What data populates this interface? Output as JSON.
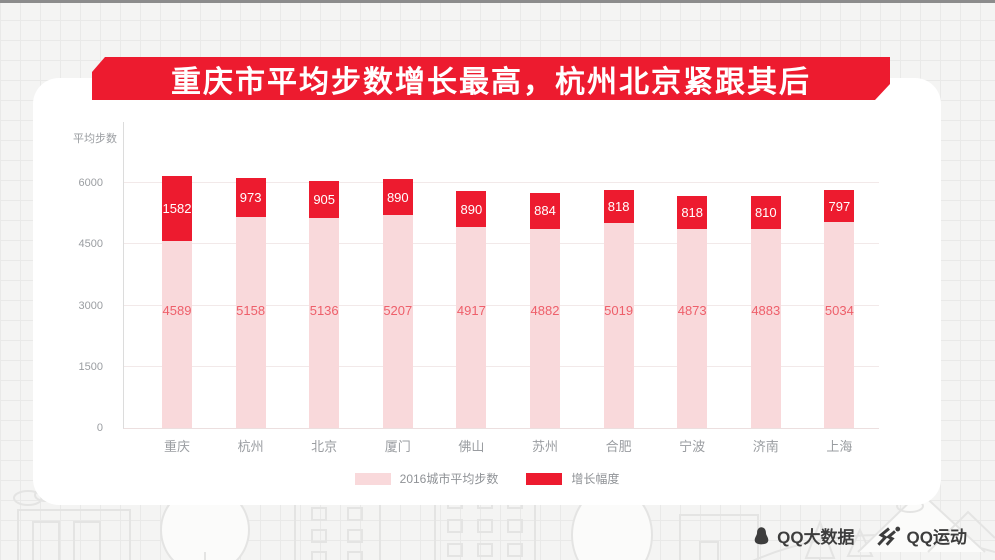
{
  "banner": {
    "title": "重庆市平均步数增长最高，杭州北京紧跟其后"
  },
  "chart_data": {
    "type": "bar",
    "stacked": true,
    "title": "重庆市平均步数增长最高，杭州北京紧跟其后",
    "ylabel": "平均步数",
    "xlabel": "",
    "categories": [
      "重庆",
      "杭州",
      "北京",
      "厦门",
      "佛山",
      "苏州",
      "合肥",
      "宁波",
      "济南",
      "上海"
    ],
    "series": [
      {
        "name": "2016城市平均步数",
        "color": "#f9d9db",
        "label_color": "#ee5f6a",
        "values": [
          4589,
          5158,
          5136,
          5207,
          4917,
          4882,
          5019,
          4873,
          4883,
          5034
        ]
      },
      {
        "name": "增长幅度",
        "color": "#ed1b2f",
        "label_color": "#ffffff",
        "values": [
          1582,
          973,
          905,
          890,
          890,
          884,
          818,
          818,
          810,
          797
        ]
      }
    ],
    "yticks": [
      0,
      1500,
      3000,
      4500,
      6000
    ],
    "ylim": [
      0,
      7500
    ],
    "grid": true,
    "legend_position": "bottom"
  },
  "branding": {
    "qq_bigdata_label": "QQ大数据",
    "qq_sports_label": "QQ运动",
    "icons": {
      "penguin": "penguin-icon",
      "runner": "runner-icon"
    }
  },
  "colors": {
    "accent_red": "#ed1b2f",
    "light_pink": "#f9d9db",
    "background": "#f4f4f3"
  }
}
